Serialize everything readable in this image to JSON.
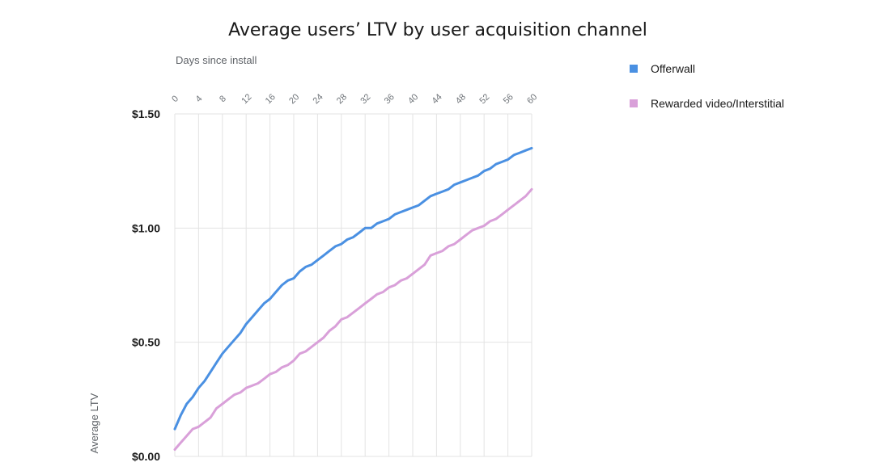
{
  "chart_data": {
    "type": "line",
    "title": "Average users’ LTV by user acquisition channel",
    "xlabel": "Days since install",
    "ylabel": "Average LTV",
    "xlim": [
      0,
      60
    ],
    "ylim": [
      0,
      1.5
    ],
    "x_ticks": [
      "0",
      "4",
      "8",
      "12",
      "16",
      "20",
      "24",
      "28",
      "32",
      "36",
      "40",
      "44",
      "48",
      "52",
      "56",
      "60"
    ],
    "x_tick_values": [
      0,
      4,
      8,
      12,
      16,
      20,
      24,
      28,
      32,
      36,
      40,
      44,
      48,
      52,
      56,
      60
    ],
    "y_ticks": [
      "$0.00",
      "$0.50",
      "$1.00",
      "$1.50"
    ],
    "y_tick_values": [
      0,
      0.5,
      1.0,
      1.5
    ],
    "grid": true,
    "legend_position": "top-right",
    "x": [
      0,
      1,
      2,
      3,
      4,
      5,
      6,
      7,
      8,
      9,
      10,
      11,
      12,
      13,
      14,
      15,
      16,
      17,
      18,
      19,
      20,
      21,
      22,
      23,
      24,
      25,
      26,
      27,
      28,
      29,
      30,
      31,
      32,
      33,
      34,
      35,
      36,
      37,
      38,
      39,
      40,
      41,
      42,
      43,
      44,
      45,
      46,
      47,
      48,
      49,
      50,
      51,
      52,
      53,
      54,
      55,
      56,
      57,
      58,
      59,
      60
    ],
    "series": [
      {
        "name": "Offerwall",
        "color": "#4a90e2",
        "values": [
          0.12,
          0.18,
          0.23,
          0.26,
          0.3,
          0.33,
          0.37,
          0.41,
          0.45,
          0.48,
          0.51,
          0.54,
          0.58,
          0.61,
          0.64,
          0.67,
          0.69,
          0.72,
          0.75,
          0.77,
          0.78,
          0.81,
          0.83,
          0.84,
          0.86,
          0.88,
          0.9,
          0.92,
          0.93,
          0.95,
          0.96,
          0.98,
          1.0,
          1.0,
          1.02,
          1.03,
          1.04,
          1.06,
          1.07,
          1.08,
          1.09,
          1.1,
          1.12,
          1.14,
          1.15,
          1.16,
          1.17,
          1.19,
          1.2,
          1.21,
          1.22,
          1.23,
          1.25,
          1.26,
          1.28,
          1.29,
          1.3,
          1.32,
          1.33,
          1.34,
          1.35
        ]
      },
      {
        "name": "Rewarded video/Interstitial",
        "color": "#d9a0d9",
        "values": [
          0.03,
          0.06,
          0.09,
          0.12,
          0.13,
          0.15,
          0.17,
          0.21,
          0.23,
          0.25,
          0.27,
          0.28,
          0.3,
          0.31,
          0.32,
          0.34,
          0.36,
          0.37,
          0.39,
          0.4,
          0.42,
          0.45,
          0.46,
          0.48,
          0.5,
          0.52,
          0.55,
          0.57,
          0.6,
          0.61,
          0.63,
          0.65,
          0.67,
          0.69,
          0.71,
          0.72,
          0.74,
          0.75,
          0.77,
          0.78,
          0.8,
          0.82,
          0.84,
          0.88,
          0.89,
          0.9,
          0.92,
          0.93,
          0.95,
          0.97,
          0.99,
          1.0,
          1.01,
          1.03,
          1.04,
          1.06,
          1.08,
          1.1,
          1.12,
          1.14,
          1.17
        ]
      }
    ]
  }
}
